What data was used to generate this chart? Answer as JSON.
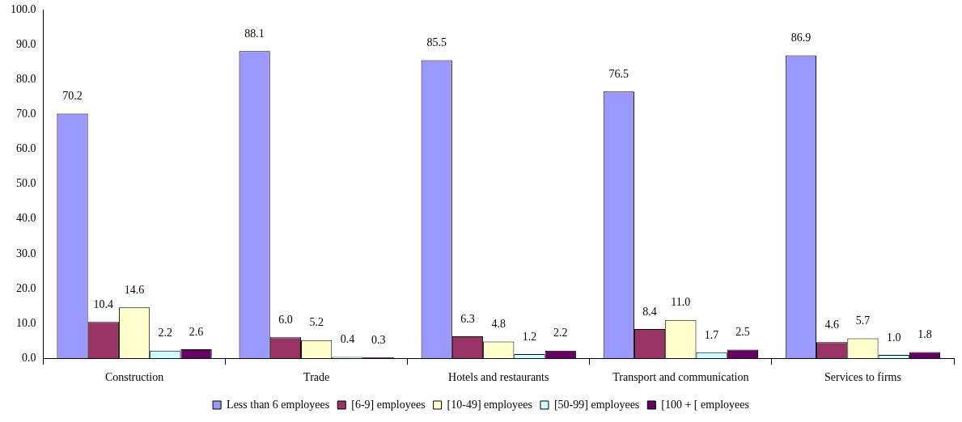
{
  "chart_data": {
    "type": "bar",
    "categories": [
      "Construction",
      "Trade",
      "Hotels and restaurants",
      "Transport and communication",
      "Services to firms"
    ],
    "series": [
      {
        "name": "Less than 6 employees",
        "color": "#9999ff",
        "values": [
          70.2,
          88.1,
          85.5,
          76.5,
          86.9
        ],
        "value_labels": [
          "70.2",
          "88.1",
          "85.5",
          "76.5",
          "86.9"
        ]
      },
      {
        "name": "[6-9] employees",
        "color": "#993366",
        "values": [
          10.4,
          6.0,
          6.3,
          8.4,
          4.6
        ],
        "value_labels": [
          "10.4",
          "6.0",
          "6.3",
          "8.4",
          "4.6"
        ]
      },
      {
        "name": "[10-49] employees",
        "color": "#ffffcc",
        "values": [
          14.6,
          5.2,
          4.8,
          11.0,
          5.7
        ],
        "value_labels": [
          "14.6",
          "5.2",
          "4.8",
          "11.0",
          "5.7"
        ]
      },
      {
        "name": "[50-99] employees",
        "color": "#ccffff",
        "values": [
          2.2,
          0.4,
          1.2,
          1.7,
          1.0
        ],
        "value_labels": [
          "2.2",
          "0.4",
          "1.2",
          "1.7",
          "1.0"
        ]
      },
      {
        "name": "[100 + [ employees",
        "color": "#660066",
        "values": [
          2.6,
          0.3,
          2.2,
          2.5,
          1.8
        ],
        "value_labels": [
          "2.6",
          "0.3",
          "2.2",
          "2.5",
          "1.8"
        ]
      }
    ],
    "ylim": [
      0,
      100
    ],
    "yticks": [
      {
        "value": 0,
        "label": "0.0"
      },
      {
        "value": 10,
        "label": "10.0"
      },
      {
        "value": 20,
        "label": "20.0"
      },
      {
        "value": 30,
        "label": "30.0"
      },
      {
        "value": 40,
        "label": "40.0"
      },
      {
        "value": 50,
        "label": "50.0"
      },
      {
        "value": 60,
        "label": "60.0"
      },
      {
        "value": 70,
        "label": "70.0"
      },
      {
        "value": 80,
        "label": "80.0"
      },
      {
        "value": 90,
        "label": "90.0"
      },
      {
        "value": 100,
        "label": "100.0"
      }
    ],
    "grid": false,
    "legend": "bottom"
  }
}
